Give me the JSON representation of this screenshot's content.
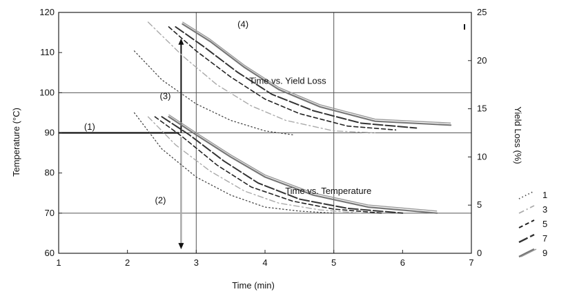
{
  "chart_data": {
    "type": "line",
    "xlabel": "Time (min)",
    "ylabel_left": "Temperature (°C)",
    "ylabel_right": "Yield Loss (%)",
    "xlim": [
      1,
      7
    ],
    "ylim_left": [
      60,
      120
    ],
    "ylim_right": [
      0,
      25
    ],
    "x_ticks": [
      1,
      2,
      3,
      4,
      5,
      6,
      7
    ],
    "y_left_ticks": [
      60,
      70,
      80,
      90,
      100,
      110,
      120
    ],
    "y_right_ticks": [
      0,
      5,
      10,
      15,
      20,
      25
    ],
    "grid": true,
    "annotations": [
      {
        "text": "(1)",
        "x": 1.45,
        "y": 90.8
      },
      {
        "text": "(2)",
        "x": 2.48,
        "y": 72.5
      },
      {
        "text": "(3)",
        "x": 2.55,
        "y": 98.4
      },
      {
        "text": "(4)",
        "x": 3.68,
        "y": 116.3
      },
      {
        "text": "Time vs. Yield Loss",
        "x": 4.33,
        "y": 102.2
      },
      {
        "text": "Time vs. Temperature",
        "x": 4.92,
        "y": 74.8
      }
    ],
    "guides": {
      "horizontal_90": {
        "from": [
          1,
          90
        ],
        "to": [
          2.75,
          90
        ]
      },
      "vertical_up": {
        "x": 2.78,
        "from": 90,
        "to": 113.5
      },
      "vertical_down": {
        "x": 2.78,
        "from": 89,
        "to": 61
      },
      "right_tick_mark": {
        "x": 6.9,
        "y": 23.5
      }
    },
    "legend": {
      "position": "right",
      "entries": [
        "1",
        "3",
        "5",
        "7",
        "9"
      ]
    },
    "temperature_series": [
      {
        "x": [
          2.1,
          2.5,
          3.0,
          3.5,
          4.0,
          4.5,
          5.0
        ],
        "y": [
          95,
          86,
          79,
          74.5,
          71.5,
          70.5,
          70
        ]
      },
      {
        "x": [
          2.3,
          2.7,
          3.2,
          3.7,
          4.2,
          4.8,
          5.4
        ],
        "y": [
          94,
          87,
          80.5,
          75.5,
          72.5,
          70.8,
          70
        ]
      },
      {
        "x": [
          2.4,
          2.8,
          3.3,
          3.8,
          4.4,
          5.0,
          5.7
        ],
        "y": [
          94,
          89,
          82,
          76.5,
          73,
          71,
          70
        ]
      },
      {
        "x": [
          2.5,
          2.9,
          3.4,
          3.9,
          4.5,
          5.2,
          6.0
        ],
        "y": [
          94,
          89.5,
          83,
          77.5,
          73.5,
          71.2,
          70
        ]
      },
      {
        "x": [
          2.6,
          3.0,
          3.5,
          4.0,
          4.7,
          5.5,
          6.5
        ],
        "y": [
          94,
          89.5,
          84,
          79,
          74.5,
          71.5,
          70
        ]
      }
    ],
    "yield_series": [
      {
        "x": [
          2.1,
          2.5,
          3.0,
          3.5,
          4.0,
          4.4
        ],
        "y": [
          21,
          18,
          15.5,
          13.8,
          12.7,
          12.3
        ]
      },
      {
        "x": [
          2.3,
          2.8,
          3.3,
          3.8,
          4.3,
          5.0,
          5.6
        ],
        "y": [
          24,
          20.5,
          17.5,
          15.3,
          13.8,
          12.7,
          12.5
        ]
      },
      {
        "x": [
          2.6,
          3.0,
          3.5,
          4.0,
          4.5,
          5.2,
          5.9
        ],
        "y": [
          23.5,
          21,
          18.3,
          16,
          14.5,
          13.2,
          12.8
        ]
      },
      {
        "x": [
          2.7,
          3.1,
          3.6,
          4.1,
          4.7,
          5.4,
          6.2
        ],
        "y": [
          23.5,
          21.5,
          18.8,
          16.5,
          14.8,
          13.5,
          13
        ]
      },
      {
        "x": [
          2.8,
          3.2,
          3.7,
          4.2,
          4.8,
          5.6,
          6.7
        ],
        "y": [
          23.8,
          22,
          19.3,
          17,
          15.2,
          13.7,
          13.3
        ]
      }
    ]
  }
}
